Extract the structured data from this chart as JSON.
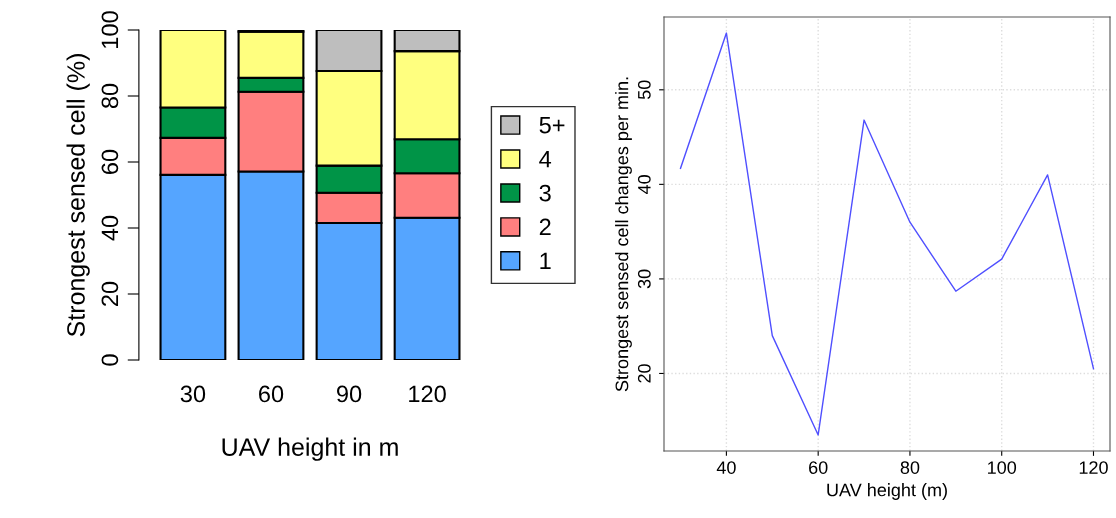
{
  "chart_data": [
    {
      "type": "bar",
      "stacked": true,
      "xlabel": "UAV height in m",
      "ylabel": "Strongest sensed cell (%)",
      "categories": [
        "30",
        "60",
        "90",
        "120"
      ],
      "ylim": [
        0,
        100
      ],
      "yticks": [
        0,
        20,
        40,
        60,
        80,
        100
      ],
      "legend": "right",
      "grid": false,
      "series": [
        {
          "name": "1",
          "color": "#55a5ff",
          "values": [
            56.1,
            57.1,
            41.5,
            43.1
          ]
        },
        {
          "name": "2",
          "color": "#ff7f7f",
          "values": [
            11.2,
            24.2,
            9.2,
            13.5
          ]
        },
        {
          "name": "3",
          "color": "#009447",
          "values": [
            9.2,
            4.2,
            8.2,
            10.3
          ]
        },
        {
          "name": "4",
          "color": "#ffff7f",
          "values": [
            23.5,
            14.0,
            28.7,
            26.7
          ]
        },
        {
          "name": "5+",
          "color": "#bebebe",
          "values": [
            null,
            0.5,
            12.4,
            6.4
          ]
        }
      ]
    },
    {
      "type": "line",
      "xlabel": "UAV height (m)",
      "ylabel": "Strongest sensed cell changes per min.",
      "x": [
        30,
        40,
        50,
        60,
        70,
        80,
        90,
        100,
        110,
        120
      ],
      "xlim": [
        26.4,
        123.6
      ],
      "xticks": [
        40,
        60,
        80,
        100,
        120
      ],
      "ylim": [
        11.8,
        57.7
      ],
      "yticks": [
        20,
        30,
        40,
        50
      ],
      "grid": true,
      "legend": false,
      "series": [
        {
          "color": "#4f4fff",
          "values": [
            41.7,
            56.0,
            24.0,
            13.5,
            46.8,
            36.0,
            28.7,
            32.1,
            41.0,
            20.5
          ]
        }
      ]
    }
  ]
}
